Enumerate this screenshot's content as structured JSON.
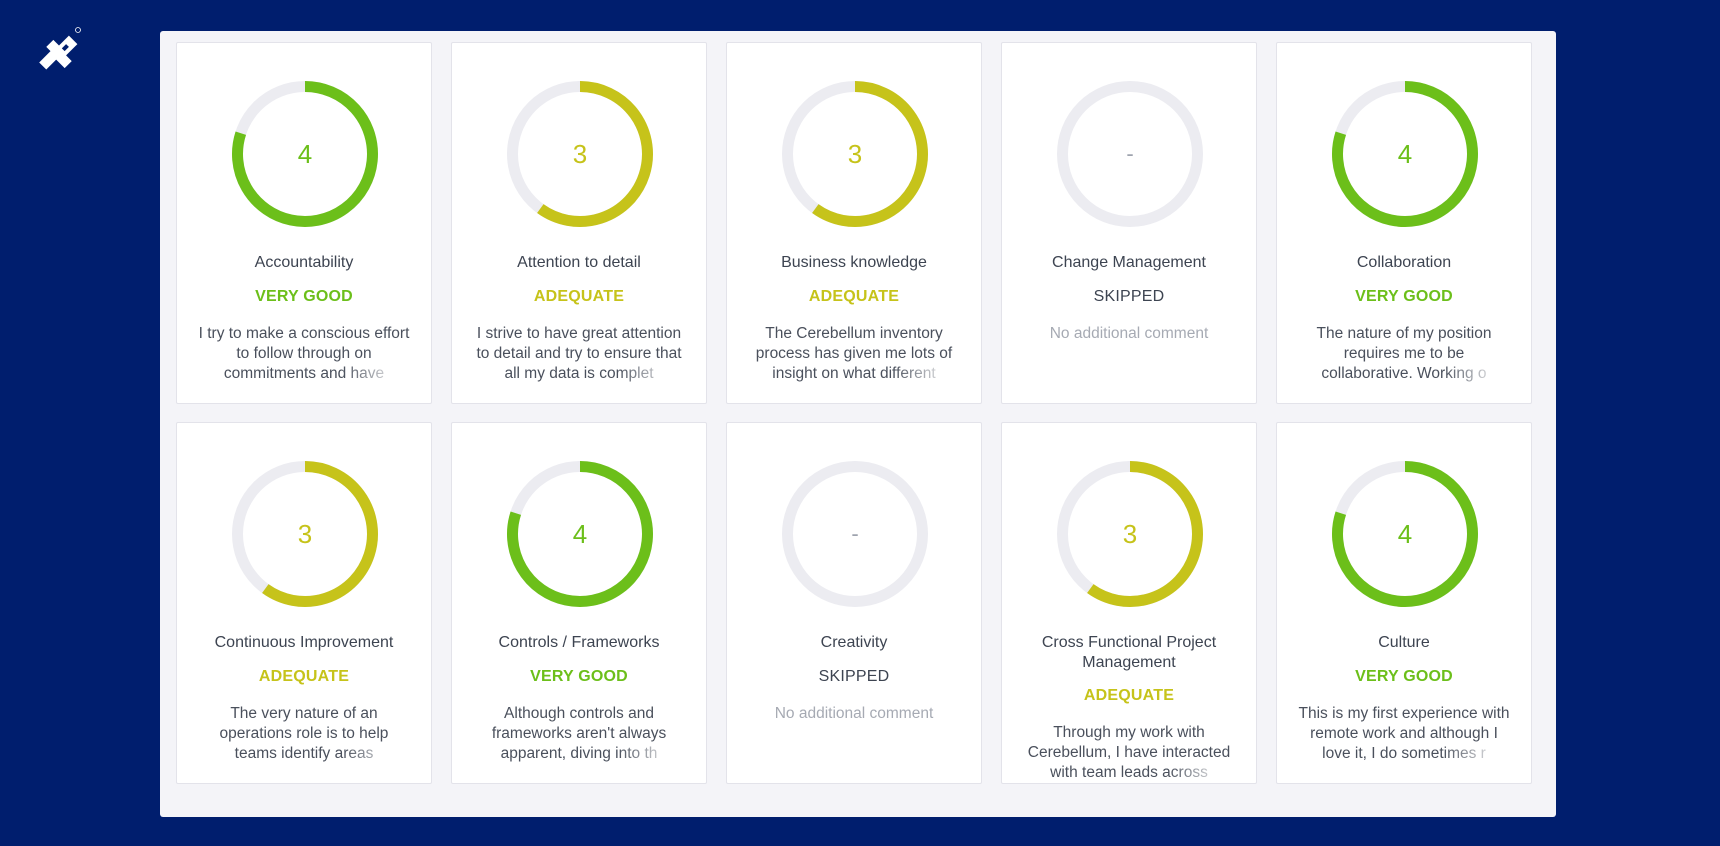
{
  "colors": {
    "background": "#001e6e",
    "very_good": "#6cbf1a",
    "adequate": "#c6c31a",
    "track": "#ececf1",
    "skipped": "#3d4451"
  },
  "logo": {
    "icon": "toptal-logo-icon"
  },
  "cards": [
    {
      "value_label": "4",
      "score": 4,
      "max_score": 5,
      "status": "very_good",
      "title": "Accountability",
      "rating": "VERY GOOD",
      "comment_lines": [
        "I try to make a conscious effort",
        "to follow through on",
        "commitments and have"
      ]
    },
    {
      "value_label": "3",
      "score": 3,
      "max_score": 5,
      "status": "adequate",
      "title": "Attention to detail",
      "rating": "ADEQUATE",
      "comment_lines": [
        "I strive to have great attention",
        "to detail and try to ensure that",
        "all my data is complet"
      ]
    },
    {
      "value_label": "3",
      "score": 3,
      "max_score": 5,
      "status": "adequate",
      "title": "Business knowledge",
      "rating": "ADEQUATE",
      "comment_lines": [
        "The Cerebellum inventory",
        "process has given me lots of",
        "insight on what different"
      ]
    },
    {
      "value_label": "-",
      "score": 0,
      "max_score": 5,
      "status": "skipped",
      "title": "Change Management",
      "rating": "SKIPPED",
      "comment_lines": [
        "No additional comment"
      ]
    },
    {
      "value_label": "4",
      "score": 4,
      "max_score": 5,
      "status": "very_good",
      "title": "Collaboration",
      "rating": "VERY GOOD",
      "comment_lines": [
        "The nature of my position",
        "requires me to be",
        "collaborative. Working o"
      ]
    },
    {
      "value_label": "3",
      "score": 3,
      "max_score": 5,
      "status": "adequate",
      "title": "Continuous Improvement",
      "rating": "ADEQUATE",
      "comment_lines": [
        "The very nature of an",
        "operations role is to help",
        "teams identify areas"
      ]
    },
    {
      "value_label": "4",
      "score": 4,
      "max_score": 5,
      "status": "very_good",
      "title": "Controls / Frameworks",
      "rating": "VERY GOOD",
      "comment_lines": [
        "Although controls and",
        "frameworks aren't always",
        "apparent, diving into th"
      ]
    },
    {
      "value_label": "-",
      "score": 0,
      "max_score": 5,
      "status": "skipped",
      "title": "Creativity",
      "rating": "SKIPPED",
      "comment_lines": [
        "No additional comment"
      ]
    },
    {
      "value_label": "3",
      "score": 3,
      "max_score": 5,
      "status": "adequate",
      "title": "Cross Functional Project Management",
      "rating": "ADEQUATE",
      "comment_lines": [
        "Through my work with",
        "Cerebellum, I have interacted",
        "with team leads across"
      ]
    },
    {
      "value_label": "4",
      "score": 4,
      "max_score": 5,
      "status": "very_good",
      "title": "Culture",
      "rating": "VERY GOOD",
      "comment_lines": [
        "This is my first experience with",
        "remote work and although I",
        "love it, I do sometimes r"
      ]
    }
  ]
}
